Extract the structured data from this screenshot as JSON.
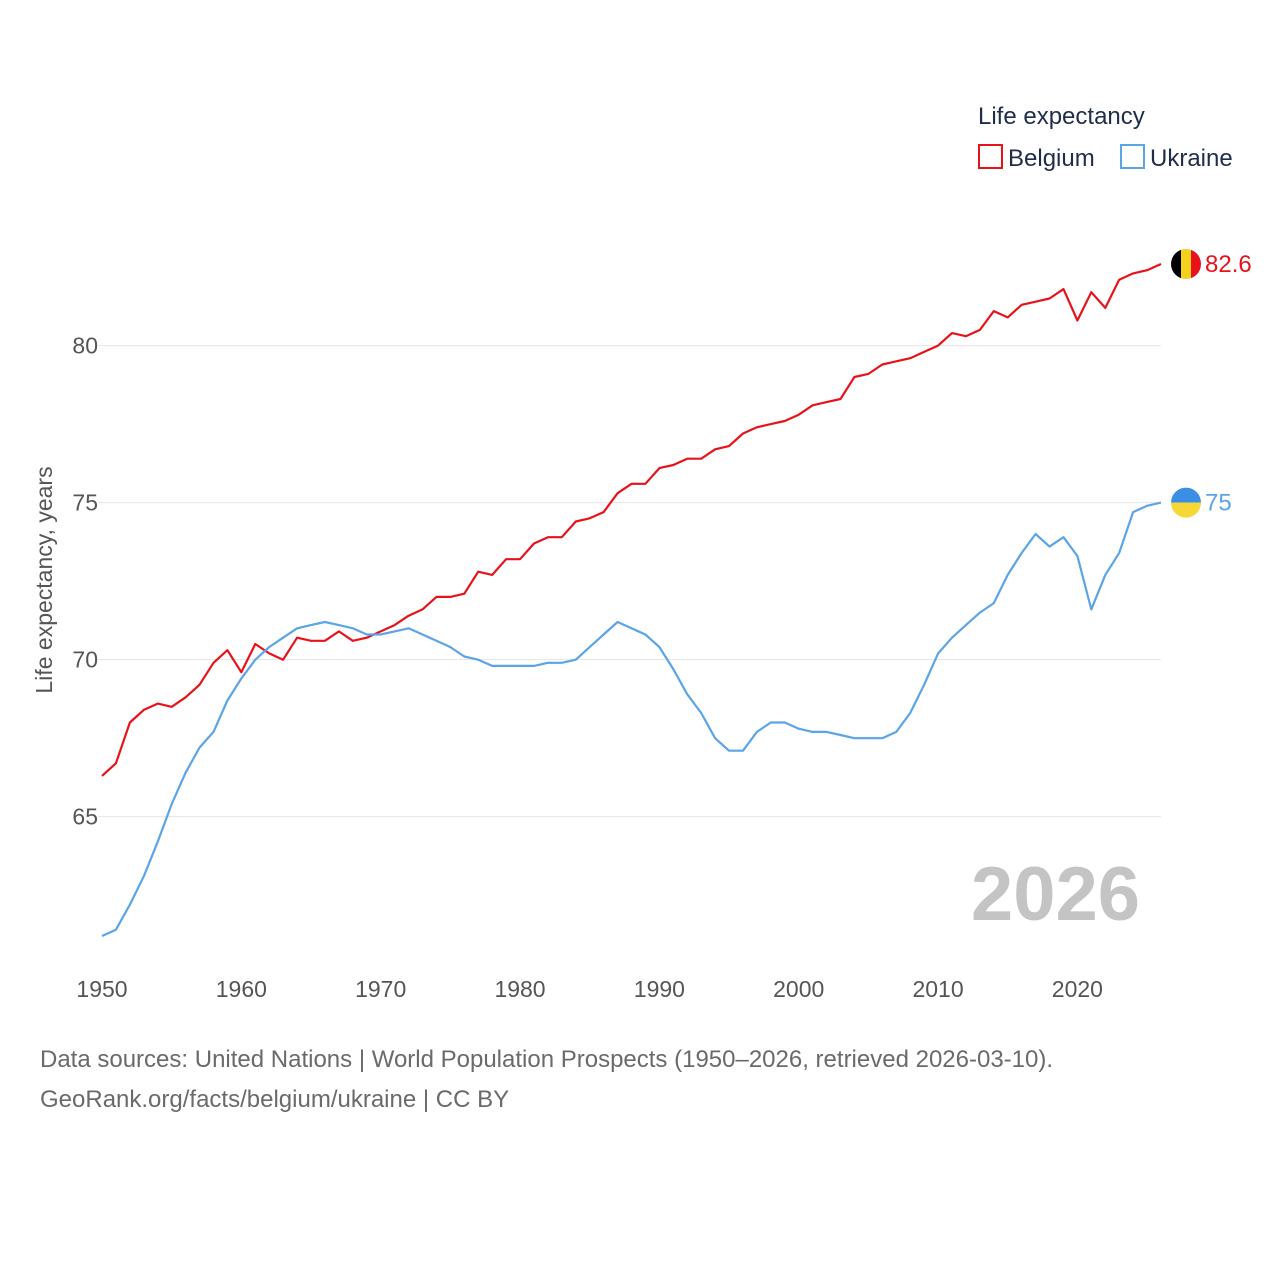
{
  "chart_data": {
    "type": "line",
    "title": "",
    "xlabel": "",
    "ylabel": "Life expectancy, years",
    "xlim": [
      1950,
      2026
    ],
    "ylim": [
      60.5,
      84
    ],
    "yticks": [
      65,
      70,
      75,
      80
    ],
    "xticks": [
      1950,
      1960,
      1970,
      1980,
      1990,
      2000,
      2010,
      2020
    ],
    "grid": true,
    "legend_title": "Life expectancy",
    "legend_position": "top-right",
    "year_watermark": "2026",
    "x": [
      1950,
      1951,
      1952,
      1953,
      1954,
      1955,
      1956,
      1957,
      1958,
      1959,
      1960,
      1961,
      1962,
      1963,
      1964,
      1965,
      1966,
      1967,
      1968,
      1969,
      1970,
      1971,
      1972,
      1973,
      1974,
      1975,
      1976,
      1977,
      1978,
      1979,
      1980,
      1981,
      1982,
      1983,
      1984,
      1985,
      1986,
      1987,
      1988,
      1989,
      1990,
      1991,
      1992,
      1993,
      1994,
      1995,
      1996,
      1997,
      1998,
      1999,
      2000,
      2001,
      2002,
      2003,
      2004,
      2005,
      2006,
      2007,
      2008,
      2009,
      2010,
      2011,
      2012,
      2013,
      2014,
      2015,
      2016,
      2017,
      2018,
      2019,
      2020,
      2021,
      2022,
      2023,
      2024,
      2025,
      2026
    ],
    "series": [
      {
        "name": "Belgium",
        "color": "#e8121a",
        "end_label": "82.6",
        "flag": "belgium-flag",
        "values": [
          66.3,
          66.7,
          68.0,
          68.4,
          68.6,
          68.5,
          68.8,
          69.2,
          69.9,
          70.3,
          69.6,
          70.5,
          70.2,
          70.0,
          70.7,
          70.6,
          70.6,
          70.9,
          70.6,
          70.7,
          70.9,
          71.1,
          71.4,
          71.6,
          72.0,
          72.0,
          72.1,
          72.8,
          72.7,
          73.2,
          73.2,
          73.7,
          73.9,
          73.9,
          74.4,
          74.5,
          74.7,
          75.3,
          75.6,
          75.6,
          76.1,
          76.2,
          76.4,
          76.4,
          76.7,
          76.8,
          77.2,
          77.4,
          77.5,
          77.6,
          77.8,
          78.1,
          78.2,
          78.3,
          79.0,
          79.1,
          79.4,
          79.5,
          79.6,
          79.8,
          80.0,
          80.4,
          80.3,
          80.5,
          81.1,
          80.9,
          81.3,
          81.4,
          81.5,
          81.8,
          80.8,
          81.7,
          81.2,
          82.1,
          82.3,
          82.4,
          82.6
        ]
      },
      {
        "name": "Ukraine",
        "color": "#5ba4e6",
        "end_label": "75",
        "flag": "ukraine-flag",
        "values": [
          61.2,
          61.4,
          62.2,
          63.1,
          64.2,
          65.4,
          66.4,
          67.2,
          67.7,
          68.7,
          69.4,
          70.0,
          70.4,
          70.7,
          71.0,
          71.1,
          71.2,
          71.1,
          71.0,
          70.8,
          70.8,
          70.9,
          71.0,
          70.8,
          70.6,
          70.4,
          70.1,
          70.0,
          69.8,
          69.8,
          69.8,
          69.8,
          69.9,
          69.9,
          70.0,
          70.4,
          70.8,
          71.2,
          71.0,
          70.8,
          70.4,
          69.7,
          68.9,
          68.3,
          67.5,
          67.1,
          67.1,
          67.7,
          68.0,
          68.0,
          67.8,
          67.7,
          67.7,
          67.6,
          67.5,
          67.5,
          67.5,
          67.7,
          68.3,
          69.2,
          70.2,
          70.7,
          71.1,
          71.5,
          71.8,
          72.7,
          73.4,
          74.0,
          73.6,
          73.9,
          73.3,
          71.6,
          72.7,
          73.4,
          74.7,
          74.9,
          75.0
        ]
      }
    ]
  },
  "footer": {
    "source_line": "Data sources: United Nations | World Population Prospects (1950–2026, retrieved 2026-03-10).",
    "credit_line": "GeoRank.org/facts/belgium/ukraine | CC BY"
  }
}
